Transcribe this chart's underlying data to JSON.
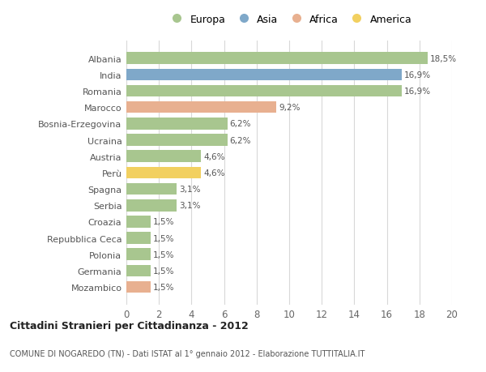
{
  "countries": [
    "Albania",
    "India",
    "Romania",
    "Marocco",
    "Bosnia-Erzegovina",
    "Ucraina",
    "Austria",
    "Perù",
    "Spagna",
    "Serbia",
    "Croazia",
    "Repubblica Ceca",
    "Polonia",
    "Germania",
    "Mozambico"
  ],
  "values": [
    18.5,
    16.9,
    16.9,
    9.2,
    6.2,
    6.2,
    4.6,
    4.6,
    3.1,
    3.1,
    1.5,
    1.5,
    1.5,
    1.5,
    1.5
  ],
  "labels": [
    "18,5%",
    "16,9%",
    "16,9%",
    "9,2%",
    "6,2%",
    "6,2%",
    "4,6%",
    "4,6%",
    "3,1%",
    "3,1%",
    "1,5%",
    "1,5%",
    "1,5%",
    "1,5%",
    "1,5%"
  ],
  "continents": [
    "Europa",
    "Asia",
    "Europa",
    "Africa",
    "Europa",
    "Europa",
    "Europa",
    "America",
    "Europa",
    "Europa",
    "Europa",
    "Europa",
    "Europa",
    "Europa",
    "Africa"
  ],
  "colors": {
    "Europa": "#a8c68f",
    "Asia": "#7fa8c9",
    "Africa": "#e8b090",
    "America": "#f2d060"
  },
  "title1": "Cittadini Stranieri per Cittadinanza - 2012",
  "title2": "COMUNE DI NOGAREDO (TN) - Dati ISTAT al 1° gennaio 2012 - Elaborazione TUTTITALIA.IT",
  "xlim": [
    0,
    20
  ],
  "xticks": [
    0,
    2,
    4,
    6,
    8,
    10,
    12,
    14,
    16,
    18,
    20
  ],
  "background_color": "#ffffff",
  "grid_color": "#d8d8d8",
  "bar_height": 0.72
}
